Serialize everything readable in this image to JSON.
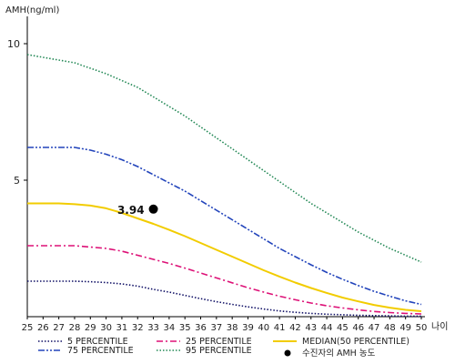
{
  "chart_data": {
    "type": "line",
    "ylabel": "AMH(ng/ml)",
    "xlabel": "나이",
    "x": [
      25,
      26,
      27,
      28,
      29,
      30,
      31,
      32,
      33,
      34,
      35,
      36,
      37,
      38,
      39,
      40,
      41,
      42,
      43,
      44,
      45,
      46,
      47,
      48,
      49,
      50
    ],
    "xlim": [
      25,
      50
    ],
    "ylim": [
      0,
      11
    ],
    "yticks": [
      5,
      10
    ],
    "grid": false,
    "legend_position": "bottom",
    "series": [
      {
        "name": "5 PERCENTILE",
        "style": "dotted",
        "color": "#111166",
        "values": [
          1.3,
          1.3,
          1.3,
          1.3,
          1.28,
          1.25,
          1.2,
          1.12,
          1.0,
          0.9,
          0.78,
          0.66,
          0.55,
          0.45,
          0.36,
          0.28,
          0.21,
          0.16,
          0.12,
          0.09,
          0.07,
          0.05,
          0.04,
          0.03,
          0.02,
          0.02
        ]
      },
      {
        "name": "25 PERCENTILE",
        "style": "dashdot",
        "color": "#dd1177",
        "values": [
          2.6,
          2.6,
          2.6,
          2.6,
          2.55,
          2.5,
          2.4,
          2.25,
          2.1,
          1.95,
          1.78,
          1.6,
          1.42,
          1.24,
          1.06,
          0.9,
          0.75,
          0.62,
          0.5,
          0.4,
          0.32,
          0.25,
          0.19,
          0.15,
          0.12,
          0.1
        ]
      },
      {
        "name": "MEDIAN(50 PERCENTILE)",
        "style": "solid",
        "color": "#f2cc00",
        "values": [
          4.15,
          4.15,
          4.15,
          4.12,
          4.07,
          3.97,
          3.8,
          3.6,
          3.4,
          3.18,
          2.95,
          2.7,
          2.45,
          2.2,
          1.95,
          1.7,
          1.47,
          1.25,
          1.05,
          0.87,
          0.7,
          0.56,
          0.43,
          0.33,
          0.25,
          0.2
        ]
      },
      {
        "name": "75 PERCENTILE",
        "style": "dashdotdot",
        "color": "#2244bb",
        "values": [
          6.2,
          6.2,
          6.2,
          6.2,
          6.1,
          5.95,
          5.75,
          5.5,
          5.2,
          4.9,
          4.6,
          4.25,
          3.9,
          3.55,
          3.2,
          2.85,
          2.5,
          2.2,
          1.9,
          1.62,
          1.37,
          1.14,
          0.93,
          0.75,
          0.58,
          0.45
        ]
      },
      {
        "name": "95 PERCENTILE",
        "style": "dotted",
        "color": "#228855",
        "values": [
          9.6,
          9.5,
          9.4,
          9.3,
          9.1,
          8.9,
          8.65,
          8.4,
          8.05,
          7.7,
          7.35,
          6.95,
          6.55,
          6.15,
          5.75,
          5.35,
          4.95,
          4.55,
          4.15,
          3.8,
          3.45,
          3.1,
          2.8,
          2.5,
          2.25,
          2.0
        ]
      }
    ],
    "marker": {
      "name": "수진자의 AMH 농도",
      "x": 33,
      "y": 3.94,
      "label": "3.94",
      "color": "#000000"
    }
  }
}
